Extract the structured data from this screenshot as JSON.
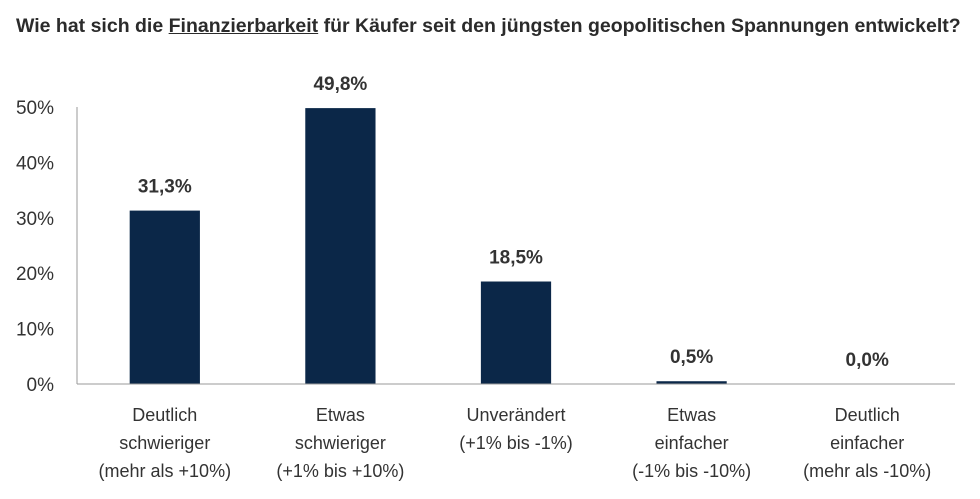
{
  "chart_data": {
    "type": "bar",
    "title_prefix": "Wie hat sich die ",
    "title_highlight": "Finanzierbarkeit",
    "title_suffix": " für Käufer seit den jüngsten geopolitischen Spannungen entwickelt?",
    "categories": [
      [
        "Deutlich",
        "schwieriger",
        "(mehr als +10%)"
      ],
      [
        "Etwas",
        "schwieriger",
        "(+1% bis +10%)"
      ],
      [
        "Unverändert",
        "(+1% bis -1%)"
      ],
      [
        "Etwas",
        "einfacher",
        "(-1% bis -10%)"
      ],
      [
        "Deutlich",
        "einfacher",
        "(mehr als -10%)"
      ]
    ],
    "values": [
      31.3,
      49.8,
      18.5,
      0.5,
      0.0
    ],
    "data_labels": [
      "31,3%",
      "49,8%",
      "18,5%",
      "0,5%",
      "0,0%"
    ],
    "y_ticks": [
      "0%",
      "10%",
      "20%",
      "30%",
      "40%",
      "50%"
    ],
    "ylim": [
      0,
      50
    ],
    "bar_color": "#0b2748",
    "grid": false,
    "legend": "none"
  }
}
